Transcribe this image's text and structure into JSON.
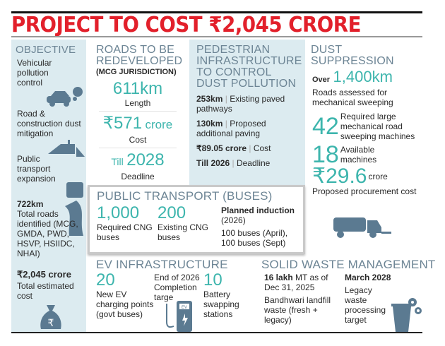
{
  "title": "PROJECT TO COST ₹2,045 CRORE",
  "objective": {
    "heading": "OBJECTIVE",
    "items": [
      "Vehicular pollution control",
      "Road & construction dust mitigation",
      "Public transport expansion"
    ],
    "roads_value": "722km",
    "roads_label": "Total roads identified (MCG, GMDA, PWD, HSVP, HSIIDC, NHAI)",
    "cost_value": "₹2,045 crore",
    "cost_label": "Total estimated cost"
  },
  "roads": {
    "heading": "ROADS TO BE REDEVELOPED",
    "sub": "(MCG JURISDICTION)",
    "length": "611km",
    "length_label": "Length",
    "cost": "₹571",
    "cost_unit": "crore",
    "cost_label": "Cost",
    "till": "Till",
    "year": "2028",
    "deadline_label": "Deadline"
  },
  "pedestrian": {
    "heading": "PEDESTRIAN INFRASTRUCTURE TO CONTROL DUST POLLUTION",
    "rows": [
      {
        "value": "253km",
        "label": "Existing paved pathways"
      },
      {
        "value": "130km",
        "label": "Proposed additional paving"
      },
      {
        "value": "₹89.05 crore",
        "label": "Cost"
      },
      {
        "value": "Till 2026",
        "label": "Deadline"
      }
    ]
  },
  "dust": {
    "heading": "DUST SUPPRESSION",
    "over": "Over",
    "km": "1,400km",
    "km_label": "Roads assessed for mechanical sweeping",
    "required": "42",
    "required_label": "Required large mechanical road sweeping machines",
    "available": "18",
    "available_label": "Available machines",
    "cost": "₹29.6",
    "cost_unit": "crore",
    "cost_label": "Proposed procurement cost"
  },
  "buses": {
    "heading": "PUBLIC TRANSPORT (BUSES)",
    "required": "1,000",
    "required_label": "Required CNG buses",
    "existing": "200",
    "existing_label": "Existing CNG buses",
    "planned": "Planned induction",
    "planned_year": "(2026)",
    "planned_detail": "100 buses (April), 100 buses (Sept)"
  },
  "ev": {
    "heading": "EV INFRASTRUCTURE",
    "points": "20",
    "points_label": "New EV charging points (govt buses)",
    "target": "End of 2026 Completion targe",
    "stations": "10",
    "stations_label": "Battery swapping stations",
    "pump_text": "EV"
  },
  "waste": {
    "heading": "SOLID WASTE MANAGEMENT",
    "amount": "16 lakh",
    "amount_rest": "MT as of Dec 31, 2025",
    "amount_label": "Bandhwari landfill waste (fresh + legacy)",
    "target": "March 2028",
    "target_label": "Legacy waste processing target"
  },
  "colors": {
    "title": "#e2202b",
    "accent": "#3db5ad",
    "heading": "#6d8595",
    "panel": "#dcebf0"
  }
}
